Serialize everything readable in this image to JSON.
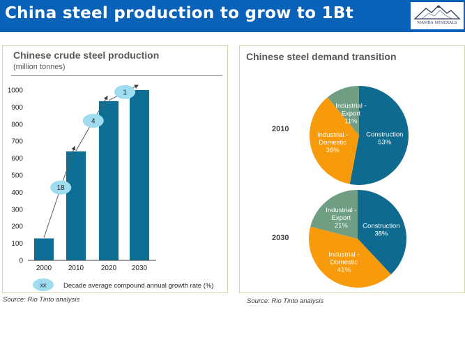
{
  "header": {
    "title": "China steel production to grow to 1Bt"
  },
  "logo": {
    "text": "MAMBA MINERALS"
  },
  "colors": {
    "header_bg": "#0a62b8",
    "bar": "#0e6f94",
    "bubble": "#9fdcf0",
    "construction": "#0e6b8f",
    "domestic": "#f79a0c",
    "export": "#6f9e83"
  },
  "left_panel": {
    "title": "Chinese crude steel production",
    "subtitle": "(million tonnes)",
    "legend_marker": "xx",
    "legend_text": "Decade average compound annual growth rate (%)",
    "source": "Source: Rio Tinto analysis"
  },
  "right_panel": {
    "title": "Chinese steel demand transition",
    "source": "Source: Rio Tinto analysis"
  },
  "chart_data": [
    {
      "type": "bar",
      "title": "Chinese crude steel production",
      "ylabel": "(million tonnes)",
      "categories": [
        "2000",
        "2010",
        "2020",
        "2030"
      ],
      "values": [
        129,
        640,
        935,
        1000
      ],
      "ylim": [
        0,
        1000
      ],
      "yticks": [
        0,
        100,
        200,
        300,
        400,
        500,
        600,
        700,
        800,
        900,
        1000
      ],
      "grid": false,
      "annotations": [
        {
          "from": "2000",
          "to": "2010",
          "label": "18"
        },
        {
          "from": "2010",
          "to": "2020",
          "label": "4"
        },
        {
          "from": "2020",
          "to": "2030",
          "label": "1"
        }
      ]
    },
    {
      "type": "pie",
      "title": "2010",
      "slices": [
        {
          "name": "Construction",
          "value": 53,
          "label": "53%"
        },
        {
          "name": "Industrial - Domestic",
          "value": 36,
          "label": "36%"
        },
        {
          "name": "Industrial - Export",
          "value": 11,
          "label": "11%"
        }
      ]
    },
    {
      "type": "pie",
      "title": "2030",
      "slices": [
        {
          "name": "Construction",
          "value": 38,
          "label": "38%"
        },
        {
          "name": "Industrial - Domestic",
          "value": 41,
          "label": "41%"
        },
        {
          "name": "Industrial - Export",
          "value": 21,
          "label": "21%"
        }
      ]
    }
  ]
}
